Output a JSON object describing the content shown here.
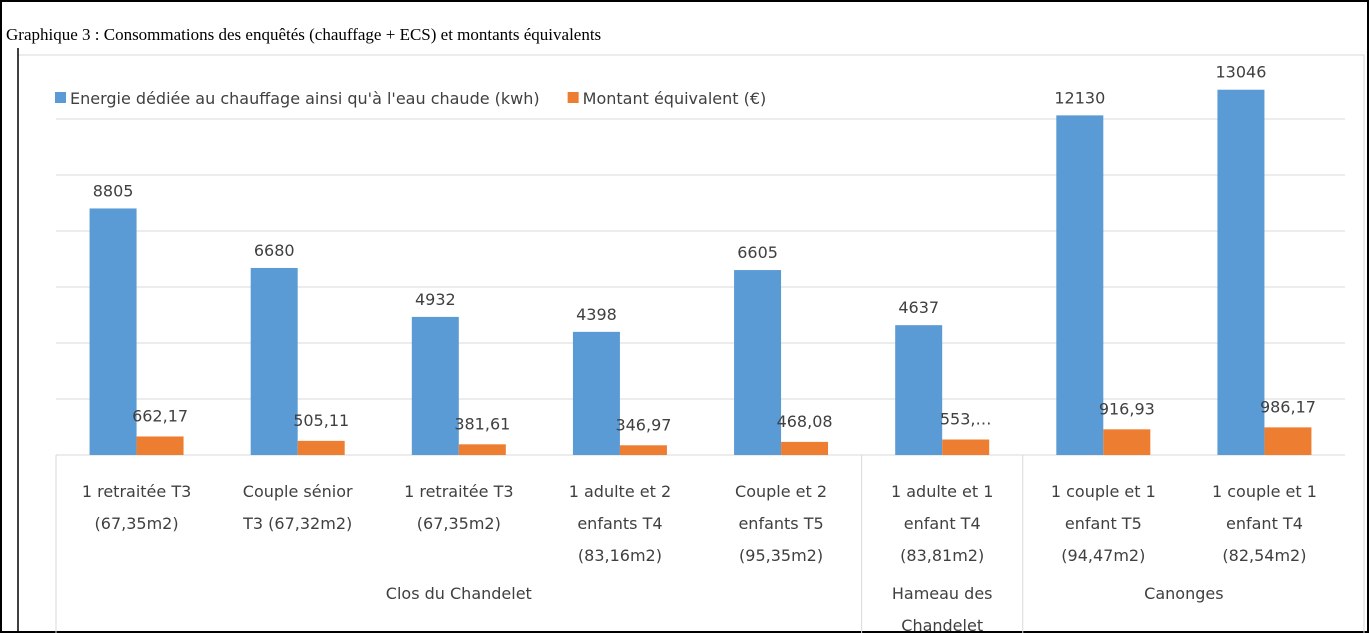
{
  "chart_data": {
    "type": "bar",
    "title": "Graphique 3 : Consommations des enquêtés (chauffage + ECS) et montants équivalents",
    "categories": [
      [
        "1 retraitée T3",
        "(67,35m2)"
      ],
      [
        "Couple sénior",
        "T3 (67,32m2)"
      ],
      [
        "1 retraitée T3",
        "(67,35m2)"
      ],
      [
        "1 adulte et 2",
        "enfants T4",
        "(83,16m2)"
      ],
      [
        "Couple et 2",
        "enfants T5",
        "(95,35m2)"
      ],
      [
        "1 adulte et 1",
        "enfant T4",
        "(83,81m2)"
      ],
      [
        "1 couple  et 1",
        "enfant T5",
        "(94,47m2)"
      ],
      [
        "1 couple  et 1",
        "enfant T4",
        "(82,54m2)"
      ]
    ],
    "groups": [
      {
        "name": [
          "Clos du Chandelet"
        ],
        "span": 5
      },
      {
        "name": [
          "Hameau des",
          "Chandelet"
        ],
        "span": 1
      },
      {
        "name": [
          "Canonges"
        ],
        "span": 2
      }
    ],
    "series": [
      {
        "name": "Energie dédiée au chauffage ainsi qu'à l'eau chaude (kwh)",
        "color": "#5b9bd5",
        "values": [
          8805,
          6680,
          4932,
          4398,
          6605,
          4637,
          12130,
          13046
        ]
      },
      {
        "name": "Montant équivalent (€)",
        "color": "#ed7d31",
        "values": [
          662.17,
          505.11,
          381.61,
          346.97,
          468.08,
          553,
          916.93,
          986.17
        ],
        "value_labels": [
          "662,17",
          "505,11",
          "381,61",
          "346,97",
          "468,08",
          "553,…",
          "916,93",
          "986,17"
        ]
      }
    ],
    "ylim": [
      0,
      14000
    ],
    "yticks": [
      0,
      2000,
      4000,
      6000,
      8000,
      10000,
      12000
    ],
    "grid": true,
    "legend": "top"
  }
}
